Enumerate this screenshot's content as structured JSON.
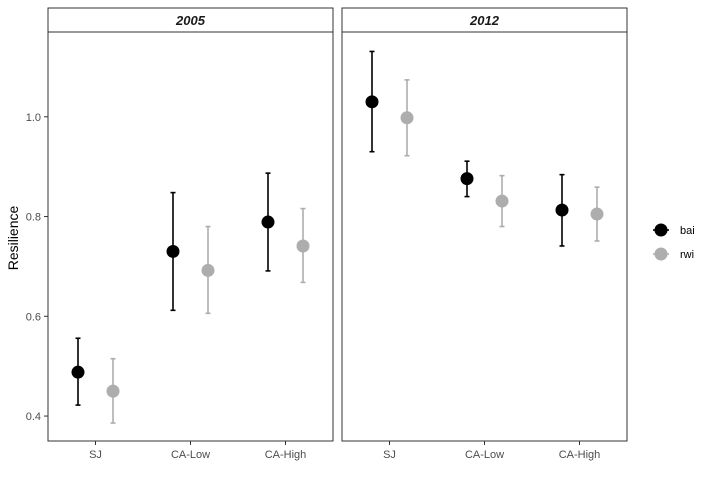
{
  "chart_data": {
    "type": "scatter",
    "ylabel": "Resilience",
    "xlabel": "",
    "ylim": [
      0.35,
      1.17
    ],
    "yticks": [
      0.4,
      0.6,
      0.8,
      1.0
    ],
    "ytick_labels": [
      "0.4",
      "0.6",
      "0.8",
      "1.0"
    ],
    "categories": [
      "SJ",
      "CA-Low",
      "CA-High"
    ],
    "grid": false,
    "legend_position": "right",
    "panels": [
      {
        "label": "2005",
        "series": [
          {
            "name": "bai",
            "color": "#000000",
            "values": [
              0.488,
              0.73,
              0.789
            ],
            "lower": [
              0.422,
              0.612,
              0.691
            ],
            "upper": [
              0.556,
              0.848,
              0.887
            ]
          },
          {
            "name": "rwi",
            "color": "#adadad",
            "values": [
              0.45,
              0.692,
              0.741
            ],
            "lower": [
              0.386,
              0.606,
              0.668
            ],
            "upper": [
              0.515,
              0.78,
              0.816
            ]
          }
        ]
      },
      {
        "label": "2012",
        "series": [
          {
            "name": "bai",
            "color": "#000000",
            "values": [
              1.03,
              0.876,
              0.813
            ],
            "lower": [
              0.93,
              0.84,
              0.741
            ],
            "upper": [
              1.131,
              0.911,
              0.884
            ]
          },
          {
            "name": "rwi",
            "color": "#adadad",
            "values": [
              0.998,
              0.831,
              0.805
            ],
            "lower": [
              0.922,
              0.78,
              0.751
            ],
            "upper": [
              1.074,
              0.882,
              0.859
            ]
          }
        ]
      }
    ]
  }
}
